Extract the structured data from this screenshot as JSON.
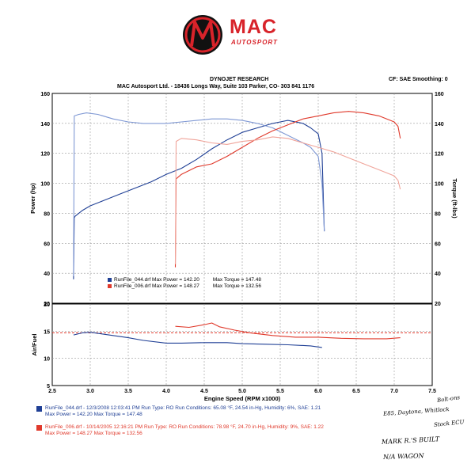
{
  "logo": {
    "brand": "MAC",
    "sub": "AUTOSPORT"
  },
  "header": {
    "title": "DYNOJET RESEARCH",
    "address": "MAC Autosport Ltd. - 18436 Longs Way, Suite 103 Parker, CO- 303 841 1176",
    "settings": "CF: SAE  Smoothing: 0"
  },
  "colors": {
    "blue": "#1f3f95",
    "red": "#e0392b",
    "redLight": "#f0a49a",
    "blueLight": "#7f98d4"
  },
  "chart_data": [
    {
      "type": "line",
      "xlabel": "Engine Speed (RPM x1000)",
      "ylabel": "Power (hp)",
      "y2label": "Torque (ft-lbs)",
      "xlim": [
        2.5,
        7.5
      ],
      "ylim": [
        20,
        160
      ],
      "xticks": [
        "2.5",
        "3.0",
        "3.5",
        "4.0",
        "4.5",
        "5.0",
        "5.5",
        "6.0",
        "6.5",
        "7.0",
        "7.5"
      ],
      "yticks": [
        "160",
        "140",
        "120",
        "100",
        "80",
        "60",
        "40",
        "20"
      ],
      "legend": [
        {
          "label": "RunFile_044.drf Max Power = 142.20",
          "torque": "Max Torque = 147.48",
          "color": "#1f3f95"
        },
        {
          "label": "RunFile_006.drf Max Power = 148.27",
          "torque": "Max Torque = 132.56",
          "color": "#e0392b"
        }
      ],
      "series": [
        {
          "name": "RunFile_044.drf",
          "metric": "Power",
          "color": "#1f3f95",
          "x": [
            2.78,
            2.79,
            2.8,
            2.9,
            3.0,
            3.2,
            3.4,
            3.6,
            3.8,
            4.0,
            4.2,
            4.4,
            4.6,
            4.8,
            5.0,
            5.2,
            5.4,
            5.5,
            5.6,
            5.8,
            5.9,
            6.0,
            6.05,
            6.08
          ],
          "y": [
            36,
            77,
            78,
            82,
            85,
            89,
            93,
            97,
            101,
            106,
            110,
            116,
            123,
            129,
            134,
            137,
            140,
            141,
            142,
            140,
            137,
            133,
            120,
            68
          ]
        },
        {
          "name": "RunFile_044.drf",
          "metric": "Torque",
          "color": "#7f98d4",
          "x": [
            2.78,
            2.79,
            2.85,
            2.95,
            3.1,
            3.3,
            3.5,
            3.7,
            4.0,
            4.2,
            4.4,
            4.6,
            4.8,
            5.0,
            5.2,
            5.4,
            5.6,
            5.8,
            5.9,
            6.0,
            6.05,
            6.08
          ],
          "y": [
            38,
            145,
            146,
            147,
            146,
            143,
            141,
            140,
            140,
            141,
            142,
            143,
            143,
            142,
            140,
            137,
            132,
            127,
            124,
            118,
            100,
            68
          ]
        },
        {
          "name": "RunFile_006.drf",
          "metric": "Power",
          "color": "#e0392b",
          "x": [
            4.12,
            4.13,
            4.2,
            4.4,
            4.6,
            4.8,
            5.0,
            5.2,
            5.4,
            5.6,
            5.8,
            6.0,
            6.2,
            6.4,
            6.6,
            6.8,
            7.0,
            7.05,
            7.08
          ],
          "y": [
            44,
            103,
            106,
            111,
            113,
            118,
            124,
            130,
            135,
            139,
            143,
            145,
            147,
            148,
            147,
            145,
            141,
            138,
            130
          ]
        },
        {
          "name": "RunFile_006.drf",
          "metric": "Torque",
          "color": "#f0a49a",
          "x": [
            4.12,
            4.13,
            4.2,
            4.4,
            4.6,
            4.8,
            5.0,
            5.2,
            5.4,
            5.6,
            5.8,
            6.0,
            6.2,
            6.4,
            6.6,
            6.8,
            7.0,
            7.05,
            7.08
          ],
          "y": [
            46,
            128,
            130,
            129,
            127,
            126,
            128,
            129,
            131,
            130,
            127,
            124,
            121,
            117,
            113,
            109,
            105,
            102,
            96
          ]
        }
      ]
    },
    {
      "type": "line",
      "xlabel": "Engine Speed (RPM x1000)",
      "ylabel": "Air/Fuel",
      "xlim": [
        2.5,
        7.5
      ],
      "ylim": [
        5,
        20
      ],
      "xticks": [
        "2.5",
        "3.0",
        "3.5",
        "4.0",
        "4.5",
        "5.0",
        "5.5",
        "6.0",
        "6.5",
        "7.0",
        "7.5"
      ],
      "yticks": [
        "20",
        "15",
        "10",
        "5"
      ],
      "reference_line": 14.7,
      "series": [
        {
          "name": "RunFile_044.drf",
          "color": "#1f3f95",
          "x": [
            2.78,
            2.9,
            3.0,
            3.1,
            3.3,
            3.5,
            3.7,
            4.0,
            4.2,
            4.5,
            4.8,
            5.0,
            5.3,
            5.6,
            5.9,
            6.05
          ],
          "y": [
            14.3,
            14.7,
            14.8,
            14.6,
            14.2,
            13.8,
            13.3,
            12.8,
            12.8,
            12.9,
            12.9,
            12.7,
            12.6,
            12.5,
            12.3,
            12.0
          ]
        },
        {
          "name": "RunFile_006.drf",
          "color": "#e0392b",
          "x": [
            4.12,
            4.3,
            4.5,
            4.6,
            4.7,
            4.9,
            5.1,
            5.4,
            5.7,
            6.0,
            6.3,
            6.6,
            6.9,
            7.08
          ],
          "y": [
            15.9,
            15.7,
            16.2,
            16.5,
            15.8,
            15.2,
            14.7,
            14.2,
            13.9,
            13.9,
            13.7,
            13.6,
            13.6,
            13.8
          ]
        }
      ]
    }
  ],
  "runs": [
    {
      "line1": "RunFile_044.drf - 12/3/2008 12:03:41 PM  Run Type: RO  Run Conditions: 65.08 °F, 24.54 in-Hg,  Humidity:  6%, SAE: 1.21",
      "line2": "Max Power = 142.20  Max Torque = 147.48",
      "color": "#1f3f95"
    },
    {
      "line1": "RunFile_006.drf - 10/14/2005 12:16:21 PM  Run Type: RO  Run Conditions: 78.98 °F, 24.70 in-Hg,  Humidity:  9%, SAE: 1.22",
      "line2": "Max Power = 148.27  Max Torque = 132.56",
      "color": "#e0392b"
    }
  ],
  "handwritten": {
    "note1": "Bolt-ons",
    "note2": "E85, Daytona, Whitlock",
    "note3": "Stock ECU",
    "note4": "MARK R.'S BUILT",
    "note5": "N/A WAGON"
  }
}
